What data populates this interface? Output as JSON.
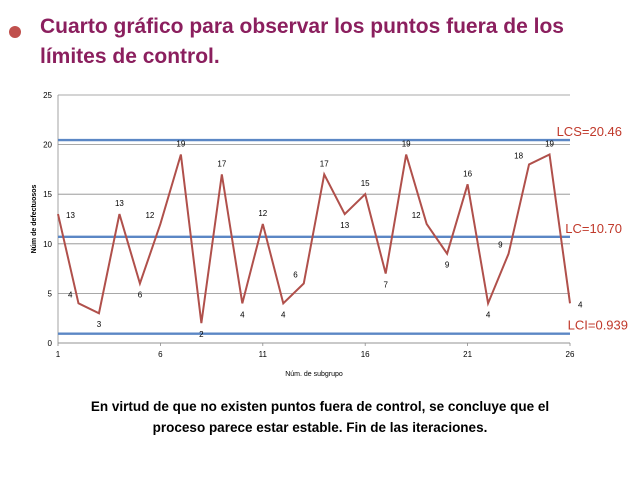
{
  "slide": {
    "title_line1": "Cuarto gráfico para observar los puntos fuera de los",
    "title_line2": "límites de control.",
    "caption_line1": "En virtud de que no existen puntos fuera de control, se concluye que el",
    "caption_line2": "proceso parece estar estable. Fin de las iteraciones."
  },
  "colors": {
    "title": "#8b1f5e",
    "series": "#b0504b",
    "limits": "#5b87c5",
    "limit_labels": "#c0392b",
    "bullet": "#c0504d"
  },
  "chart_data": {
    "type": "line",
    "xlabel": "Núm. de subgrupo",
    "ylabel": "Núm de defectuosos",
    "xlim": [
      1,
      26
    ],
    "ylim": [
      0,
      25
    ],
    "xticks": [
      1,
      6,
      11,
      16,
      21,
      26
    ],
    "yticks": [
      0,
      5,
      10,
      15,
      20,
      25
    ],
    "grid": "horizontal",
    "series": [
      {
        "x": [
          1,
          2,
          3,
          4,
          5,
          6,
          7,
          8,
          9,
          10,
          11,
          12,
          13,
          14,
          15,
          16,
          17,
          18,
          19,
          20,
          21,
          22,
          23,
          24,
          25,
          26
        ],
        "values": [
          13,
          4,
          3,
          13,
          6,
          12,
          19,
          2,
          17,
          4,
          12,
          4,
          6,
          17,
          13,
          15,
          7,
          19,
          12,
          9,
          16,
          4,
          9,
          18,
          19,
          4
        ]
      }
    ],
    "control_limits": [
      {
        "label": "LCS=20.46",
        "value": 20.46
      },
      {
        "label": "LC=10.70",
        "value": 10.7
      },
      {
        "label": "LCI=0.939",
        "value": 0.939
      }
    ]
  }
}
